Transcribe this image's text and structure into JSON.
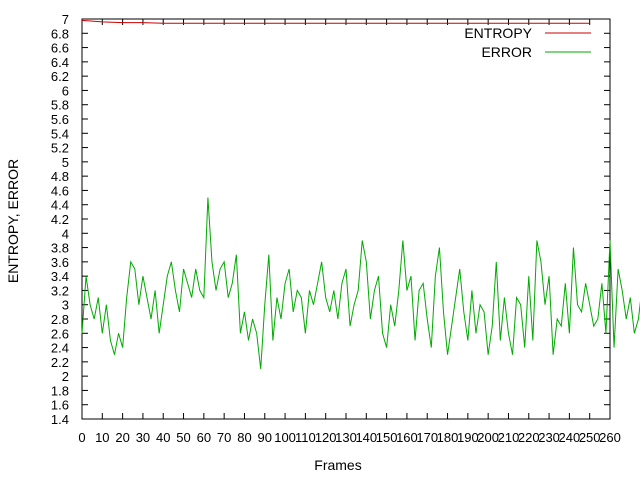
{
  "chart_data": {
    "type": "line",
    "title": "",
    "xlabel": "Frames",
    "ylabel": "ENTROPY, ERROR",
    "xlim": [
      0,
      260
    ],
    "ylim": [
      1.4,
      7
    ],
    "x_ticks": [
      0,
      10,
      20,
      30,
      40,
      50,
      60,
      70,
      80,
      90,
      100,
      110,
      120,
      130,
      140,
      150,
      160,
      170,
      180,
      190,
      200,
      210,
      220,
      230,
      240,
      250,
      260
    ],
    "y_ticks": [
      1.4,
      1.6,
      1.8,
      2,
      2.2,
      2.4,
      2.6,
      2.8,
      3,
      3.2,
      3.4,
      3.6,
      3.8,
      4,
      4.2,
      4.4,
      4.6,
      4.8,
      5,
      5.2,
      5.4,
      5.6,
      5.8,
      6,
      6.2,
      6.4,
      6.6,
      6.8,
      7
    ],
    "grid": false,
    "legend_position": "top-right",
    "series": [
      {
        "name": "ENTROPY",
        "color": "#cc0000",
        "x_step": 10,
        "values": [
          6.98,
          6.96,
          6.95,
          6.95,
          6.94,
          6.94,
          6.94,
          6.94,
          6.94,
          6.94,
          6.94,
          6.94,
          6.94,
          6.94,
          6.94,
          6.94,
          6.94,
          6.94,
          6.94,
          6.94,
          6.94,
          6.94,
          6.94,
          6.94,
          6.94,
          6.94
        ]
      },
      {
        "name": "ERROR",
        "color": "#00aa00",
        "x_step": 2,
        "values": [
          2.6,
          3.4,
          3.0,
          2.8,
          3.1,
          2.6,
          3.0,
          2.5,
          2.3,
          2.6,
          2.4,
          3.1,
          3.6,
          3.5,
          3.0,
          3.4,
          3.1,
          2.8,
          3.2,
          2.6,
          3.0,
          3.4,
          3.6,
          3.2,
          2.9,
          3.5,
          3.3,
          3.1,
          3.5,
          3.2,
          3.1,
          4.5,
          3.6,
          3.2,
          3.5,
          3.6,
          3.1,
          3.3,
          3.7,
          2.6,
          2.9,
          2.5,
          2.8,
          2.6,
          2.1,
          3.0,
          3.7,
          2.5,
          3.1,
          2.8,
          3.3,
          3.5,
          2.9,
          3.2,
          3.1,
          2.6,
          3.2,
          3.0,
          3.3,
          3.6,
          3.1,
          2.9,
          3.2,
          2.8,
          3.3,
          3.5,
          2.7,
          3.0,
          3.2,
          3.9,
          3.6,
          2.8,
          3.2,
          3.4,
          2.6,
          2.4,
          3.0,
          2.7,
          3.2,
          3.9,
          3.2,
          3.4,
          2.5,
          3.2,
          3.3,
          2.8,
          2.4,
          3.4,
          3.8,
          2.9,
          2.3,
          2.7,
          3.1,
          3.5,
          2.9,
          2.5,
          3.2,
          2.6,
          3.0,
          2.9,
          2.3,
          2.7,
          3.6,
          2.5,
          3.1,
          2.6,
          2.3,
          3.1,
          3.0,
          2.4,
          3.4,
          2.5,
          3.9,
          3.6,
          3.0,
          3.4,
          2.3,
          2.8,
          2.7,
          3.3,
          2.6,
          3.8,
          3.0,
          2.9,
          3.3,
          3.0,
          2.7,
          2.8,
          3.3,
          2.6,
          3.9,
          2.4,
          3.5,
          3.2,
          2.8,
          3.1,
          2.6,
          2.8,
          3.3,
          2.9,
          2.7,
          3.8,
          3.5,
          2.9,
          2.4,
          3.1,
          3.6,
          3.0,
          2.4,
          2.7,
          3.3,
          2.9,
          2.5,
          3.1,
          2.9,
          3.1,
          2.5,
          2.4,
          3.3,
          3.7,
          3.4,
          3.2,
          2.6,
          3.2,
          3.0,
          2.3,
          3.5,
          2.5,
          3.9,
          4.2,
          3.4,
          3.9,
          3.0,
          3.4,
          2.4,
          3.3,
          3.1,
          2.8,
          3.0,
          3.3,
          2.7,
          3.2,
          3.6,
          3.3,
          2.4,
          2.8,
          3.6,
          3.1,
          2.6,
          2.9,
          3.4,
          3.6,
          3.9,
          4.0,
          3.7,
          3.3,
          3.5,
          2.6,
          3.1,
          3.2,
          2.5,
          3.1,
          2.8,
          2.9,
          2.9,
          2.6,
          2.7,
          2.5,
          2.9,
          3.3,
          3.7,
          3.3,
          2.6,
          2.2,
          3.4,
          3.6,
          3.2,
          2.5,
          3.1,
          2.6,
          2.8,
          3.4,
          2.6,
          2.9,
          3.3,
          2.4,
          3.1,
          3.5,
          2.8,
          2.6,
          3.6,
          3.2,
          2.8,
          3.0,
          2.4,
          2.6,
          2.9,
          3.2,
          2.8,
          3.4,
          2.3,
          3.0,
          3.5,
          2.6,
          2.9,
          3.7,
          3.0,
          1.9,
          2.6,
          3.2,
          2.9,
          3.7,
          3.6,
          3.1,
          2.8,
          1.7,
          2.2,
          2.5,
          2.0,
          2.9,
          2.4,
          2.7,
          3.6,
          3.8,
          2.4,
          2.9,
          3.3,
          2.5,
          3.1,
          3.4,
          4.2,
          2.8,
          2.4,
          3.4,
          3.2
        ]
      }
    ]
  }
}
